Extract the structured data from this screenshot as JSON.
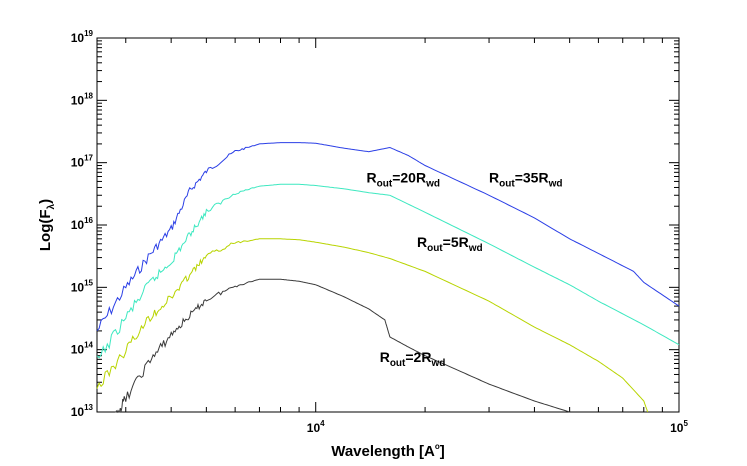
{
  "chart_data": {
    "type": "line",
    "xlabel": "Wavelength [A",
    "xlabel_sup": "o",
    "xlabel_end": "]",
    "ylabel": "Log(F",
    "ylabel_sub": "λ",
    "ylabel_end": ")",
    "xscale": "log",
    "yscale": "log",
    "xlim": [
      2500,
      100000
    ],
    "ylim": [
      10000000000000.0,
      1e+19
    ],
    "grid": false,
    "x_ticks": [
      {
        "value": 10000,
        "base": "10",
        "exp": "4"
      },
      {
        "value": 100000,
        "base": "10",
        "exp": "5"
      }
    ],
    "y_ticks": [
      {
        "value": 10000000000000.0,
        "base": "10",
        "exp": "13"
      },
      {
        "value": 100000000000000.0,
        "base": "10",
        "exp": "14"
      },
      {
        "value": 1000000000000000.0,
        "base": "10",
        "exp": "15"
      },
      {
        "value": 1e+16,
        "base": "10",
        "exp": "16"
      },
      {
        "value": 1e+17,
        "base": "10",
        "exp": "17"
      },
      {
        "value": 1e+18,
        "base": "10",
        "exp": "18"
      },
      {
        "value": 1e+19,
        "base": "10",
        "exp": "19"
      }
    ],
    "series": [
      {
        "name": "R_out=35R_wd",
        "color": "#2b3fe6",
        "points": [
          [
            2500,
            250000000000000.0
          ],
          [
            3000,
            1200000000000000.0
          ],
          [
            3500,
            4000000000000000.0
          ],
          [
            4000,
            1e+16
          ],
          [
            4500,
            4e+16
          ],
          [
            5000,
            8e+16
          ],
          [
            6000,
            1.6e+17
          ],
          [
            7000,
            2e+17
          ],
          [
            8000,
            2.1e+17
          ],
          [
            9000,
            2.1e+17
          ],
          [
            10000,
            2.05e+17
          ],
          [
            12000,
            1.7e+17
          ],
          [
            14000,
            1.5e+17
          ],
          [
            16000,
            1.75e+17
          ],
          [
            18000,
            1.3e+17
          ],
          [
            20000,
            9e+16
          ],
          [
            30000,
            3e+16
          ],
          [
            40000,
            1.3e+16
          ],
          [
            50000,
            6000000000000000.0
          ],
          [
            60000,
            3500000000000000.0
          ],
          [
            75000,
            1800000000000000.0
          ],
          [
            80000,
            1200000000000000.0
          ],
          [
            100000,
            500000000000000.0
          ]
        ]
      },
      {
        "name": "R_out=20R_wd",
        "color": "#3de8c0",
        "points": [
          [
            2500,
            80000000000000.0
          ],
          [
            3000,
            400000000000000.0
          ],
          [
            3500,
            1400000000000000.0
          ],
          [
            4000,
            3000000000000000.0
          ],
          [
            4500,
            8000000000000000.0
          ],
          [
            5000,
            1.8e+16
          ],
          [
            6000,
            3.4e+16
          ],
          [
            7000,
            4.2e+16
          ],
          [
            8000,
            4.5e+16
          ],
          [
            9000,
            4.5e+16
          ],
          [
            10000,
            4.3e+16
          ],
          [
            12000,
            3.8e+16
          ],
          [
            14000,
            3.3e+16
          ],
          [
            16000,
            3e+16
          ],
          [
            20000,
            1.6e+16
          ],
          [
            30000,
            5000000000000000.0
          ],
          [
            40000,
            2100000000000000.0
          ],
          [
            50000,
            1100000000000000.0
          ],
          [
            60000,
            600000000000000.0
          ],
          [
            80000,
            250000000000000.0
          ],
          [
            100000,
            120000000000000.0
          ]
        ]
      },
      {
        "name": "R_out=5R_wd",
        "color": "#b8d400",
        "points": [
          [
            2500,
            30000000000000.0
          ],
          [
            3000,
            120000000000000.0
          ],
          [
            3500,
            400000000000000.0
          ],
          [
            4000,
            800000000000000.0
          ],
          [
            4500,
            1800000000000000.0
          ],
          [
            5000,
            3500000000000000.0
          ],
          [
            6000,
            5500000000000000.0
          ],
          [
            7000,
            6000000000000000.0
          ],
          [
            8000,
            6000000000000000.0
          ],
          [
            9000,
            5800000000000000.0
          ],
          [
            10000,
            5300000000000000.0
          ],
          [
            12000,
            4400000000000000.0
          ],
          [
            14000,
            3600000000000000.0
          ],
          [
            16000,
            2900000000000000.0
          ],
          [
            20000,
            1800000000000000.0
          ],
          [
            30000,
            600000000000000.0
          ],
          [
            40000,
            230000000000000.0
          ],
          [
            50000,
            120000000000000.0
          ],
          [
            60000,
            65000000000000.0
          ],
          [
            70000,
            35000000000000.0
          ],
          [
            80000,
            15000000000000.0
          ],
          [
            82000,
            10000000000000.0
          ]
        ]
      },
      {
        "name": "R_out=2R_wd",
        "color": "#3a3a3a",
        "points": [
          [
            2800,
            10000000000000.0
          ],
          [
            3000,
            20000000000000.0
          ],
          [
            3500,
            80000000000000.0
          ],
          [
            4000,
            200000000000000.0
          ],
          [
            4500,
            400000000000000.0
          ],
          [
            5000,
            700000000000000.0
          ],
          [
            6000,
            1100000000000000.0
          ],
          [
            7000,
            1350000000000000.0
          ],
          [
            8000,
            1350000000000000.0
          ],
          [
            9000,
            1250000000000000.0
          ],
          [
            10000,
            1100000000000000.0
          ],
          [
            12000,
            700000000000000.0
          ],
          [
            14000,
            450000000000000.0
          ],
          [
            15500,
            300000000000000.0
          ],
          [
            16000,
            160000000000000.0
          ],
          [
            18000,
            110000000000000.0
          ],
          [
            20000,
            80000000000000.0
          ],
          [
            25000,
            45000000000000.0
          ],
          [
            30000,
            28000000000000.0
          ],
          [
            40000,
            15000000000000.0
          ],
          [
            50000,
            10000000000000.0
          ]
        ]
      }
    ],
    "annotations": [
      {
        "series": 0,
        "main": "R",
        "sub": "out",
        "eq": "=35R",
        "sub2": "wd",
        "x": 30000,
        "y": 4.8e+16
      },
      {
        "series": 1,
        "main": "R",
        "sub": "out",
        "eq": "=20R",
        "sub2": "wd",
        "x": 13800,
        "y": 4.8e+16
      },
      {
        "series": 2,
        "main": "R",
        "sub": "out",
        "eq": "=5R",
        "sub2": "wd",
        "x": 19000,
        "y": 4400000000000000.0
      },
      {
        "series": 3,
        "main": "R",
        "sub": "out",
        "eq": "=2R",
        "sub2": "wd",
        "x": 15000,
        "y": 63000000000000.0
      }
    ]
  }
}
